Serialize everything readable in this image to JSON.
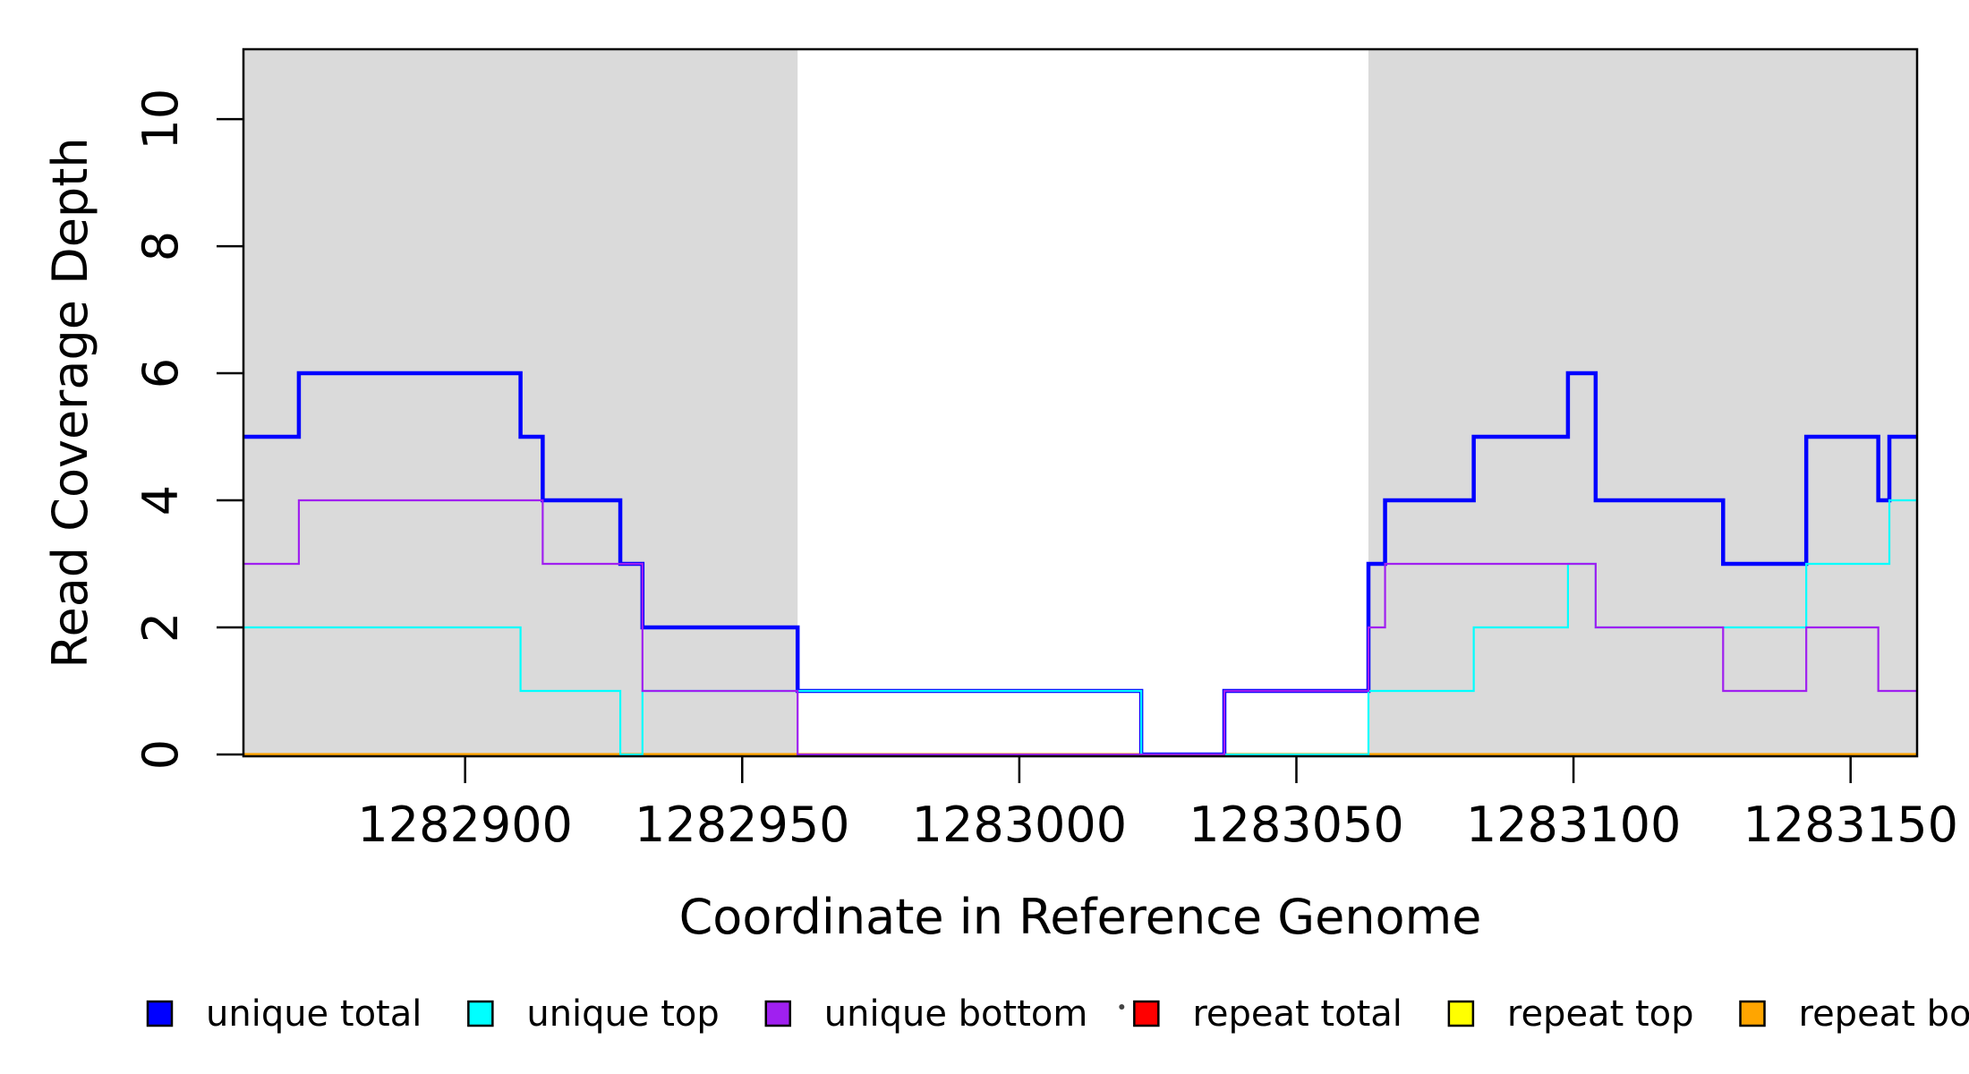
{
  "chart_data": {
    "type": "line",
    "subtype": "step-coverage-plot",
    "title": "",
    "xlabel": "Coordinate in Reference Genome",
    "ylabel": "Read Coverage Depth",
    "x_range": [
      1282860,
      1283162
    ],
    "y_range": [
      0,
      11.1
    ],
    "x_ticks": [
      1282900,
      1282950,
      1283000,
      1283050,
      1283100,
      1283150
    ],
    "y_ticks": [
      0,
      2,
      4,
      6,
      8,
      10
    ],
    "grid": "off",
    "background_color": "#ffffff",
    "shaded_regions": {
      "color": "#dadada",
      "ranges": [
        [
          1282860,
          1282960
        ],
        [
          1283063,
          1283162
        ]
      ]
    },
    "series": [
      {
        "name": "repeat total",
        "color": "#FF0000",
        "line_width": 2.2,
        "steps": [
          [
            1282860,
            0
          ]
        ]
      },
      {
        "name": "repeat top",
        "color": "#FFFF00",
        "line_width": 2.2,
        "steps": [
          [
            1282860,
            0
          ]
        ]
      },
      {
        "name": "repeat bottom",
        "color": "#FFA500",
        "line_width": 3.2,
        "steps": [
          [
            1282860,
            0
          ]
        ]
      },
      {
        "name": "unique total",
        "color": "#0000FF",
        "line_width": 4.5,
        "steps": [
          [
            1282860,
            5
          ],
          [
            1282870,
            6
          ],
          [
            1282910,
            5
          ],
          [
            1282914,
            4
          ],
          [
            1282928,
            3
          ],
          [
            1282932,
            2
          ],
          [
            1282960,
            1
          ],
          [
            1283022,
            0
          ],
          [
            1283037,
            1
          ],
          [
            1283063,
            3
          ],
          [
            1283066,
            4
          ],
          [
            1283082,
            5
          ],
          [
            1283099,
            6
          ],
          [
            1283104,
            4
          ],
          [
            1283127,
            3
          ],
          [
            1283142,
            5
          ],
          [
            1283155,
            4
          ],
          [
            1283157,
            5
          ]
        ]
      },
      {
        "name": "unique top",
        "color": "#00FFFF",
        "line_width": 2.2,
        "steps": [
          [
            1282860,
            2
          ],
          [
            1282910,
            1
          ],
          [
            1282928,
            0
          ],
          [
            1282932,
            1
          ],
          [
            1283022,
            0
          ],
          [
            1283063,
            1
          ],
          [
            1283082,
            2
          ],
          [
            1283099,
            3
          ],
          [
            1283104,
            2
          ],
          [
            1283142,
            3
          ],
          [
            1283157,
            4
          ]
        ]
      },
      {
        "name": "unique bottom",
        "color": "#A020F0",
        "line_width": 2.2,
        "steps": [
          [
            1282860,
            3
          ],
          [
            1282870,
            4
          ],
          [
            1282914,
            3
          ],
          [
            1282932,
            1
          ],
          [
            1282960,
            0
          ],
          [
            1283037,
            1
          ],
          [
            1283063,
            2
          ],
          [
            1283066,
            3
          ],
          [
            1283104,
            2
          ],
          [
            1283127,
            1
          ],
          [
            1283142,
            2
          ],
          [
            1283155,
            1
          ]
        ]
      }
    ],
    "legend": {
      "position": "bottom-horizontal",
      "items": [
        {
          "label": "unique total",
          "color": "#0000FF"
        },
        {
          "label": "unique top",
          "color": "#00FFFF"
        },
        {
          "label": "unique bottom",
          "color": "#A020F0"
        },
        {
          "label": "repeat total",
          "color": "#FF0000"
        },
        {
          "label": "repeat top",
          "color": "#FFFF00"
        },
        {
          "label": "repeat bottom",
          "color": "#FFA500"
        }
      ]
    }
  }
}
